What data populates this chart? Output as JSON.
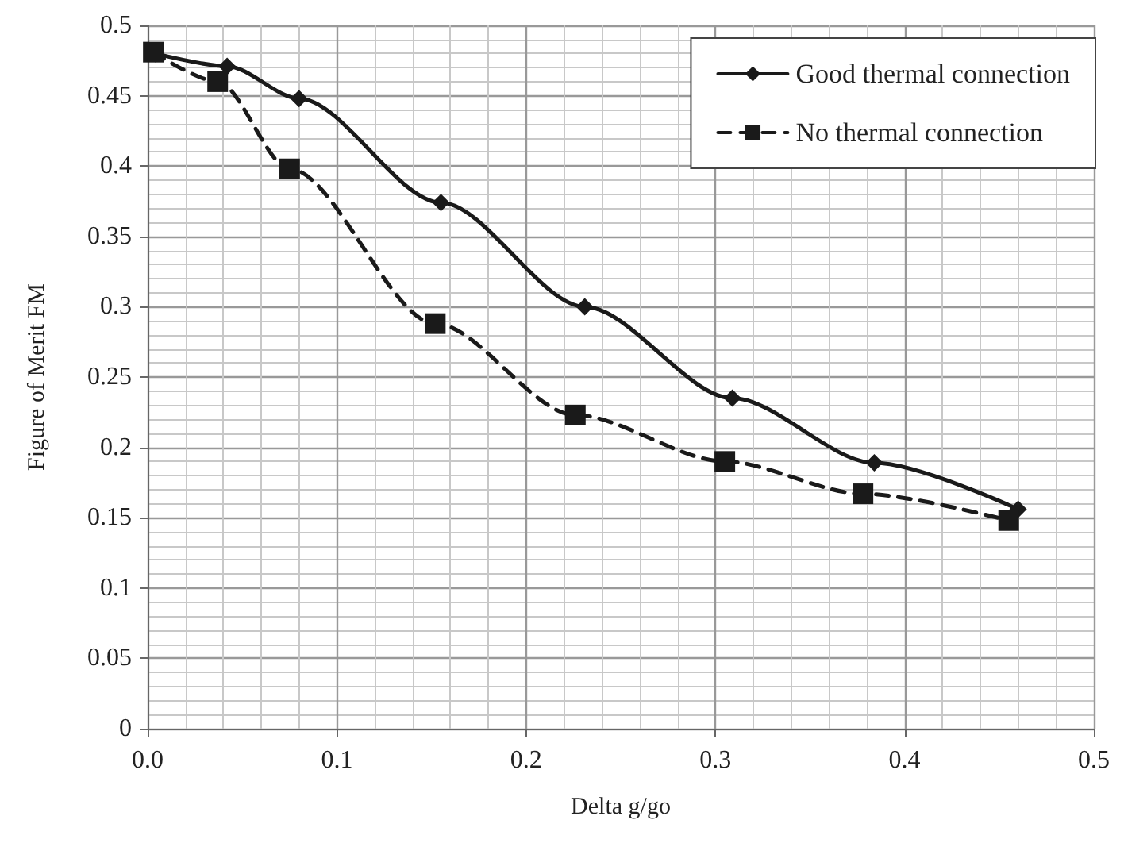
{
  "chart_data": {
    "type": "line",
    "xlabel": "Delta g/go",
    "ylabel": "Figure of Merit FM",
    "xlim": [
      0,
      0.5
    ],
    "xticks": [
      {
        "value": 0,
        "label": "0.0"
      },
      {
        "value": 0.1,
        "label": "0.1"
      },
      {
        "value": 0.2,
        "label": "0.2"
      },
      {
        "value": 0.3,
        "label": "0.3"
      },
      {
        "value": 0.4,
        "label": "0.4"
      },
      {
        "value": 0.5,
        "label": "0.5"
      }
    ],
    "ylim": [
      0,
      0.5
    ],
    "yticks": [
      0,
      0.05,
      0.1,
      0.15,
      0.2,
      0.25,
      0.3,
      0.35,
      0.4,
      0.45,
      0.5
    ],
    "grid": true,
    "legend": "top right",
    "series": [
      {
        "name": "Good thermal connection",
        "color": "#1a1a1a",
        "marker": "diamond",
        "line_style": "solid",
        "x": [
          0.004,
          0.042,
          0.08,
          0.155,
          0.231,
          0.309,
          0.384,
          0.46
        ],
        "values": [
          0.48,
          0.471,
          0.448,
          0.374,
          0.3,
          0.235,
          0.189,
          0.156
        ]
      },
      {
        "name": "No thermal connection",
        "color": "#1a1a1a",
        "marker": "square",
        "line_style": "dashed",
        "x": [
          0.003,
          0.037,
          0.075,
          0.152,
          0.226,
          0.305,
          0.378,
          0.455
        ],
        "values": [
          0.481,
          0.46,
          0.398,
          0.288,
          0.223,
          0.19,
          0.167,
          0.148
        ]
      }
    ]
  }
}
